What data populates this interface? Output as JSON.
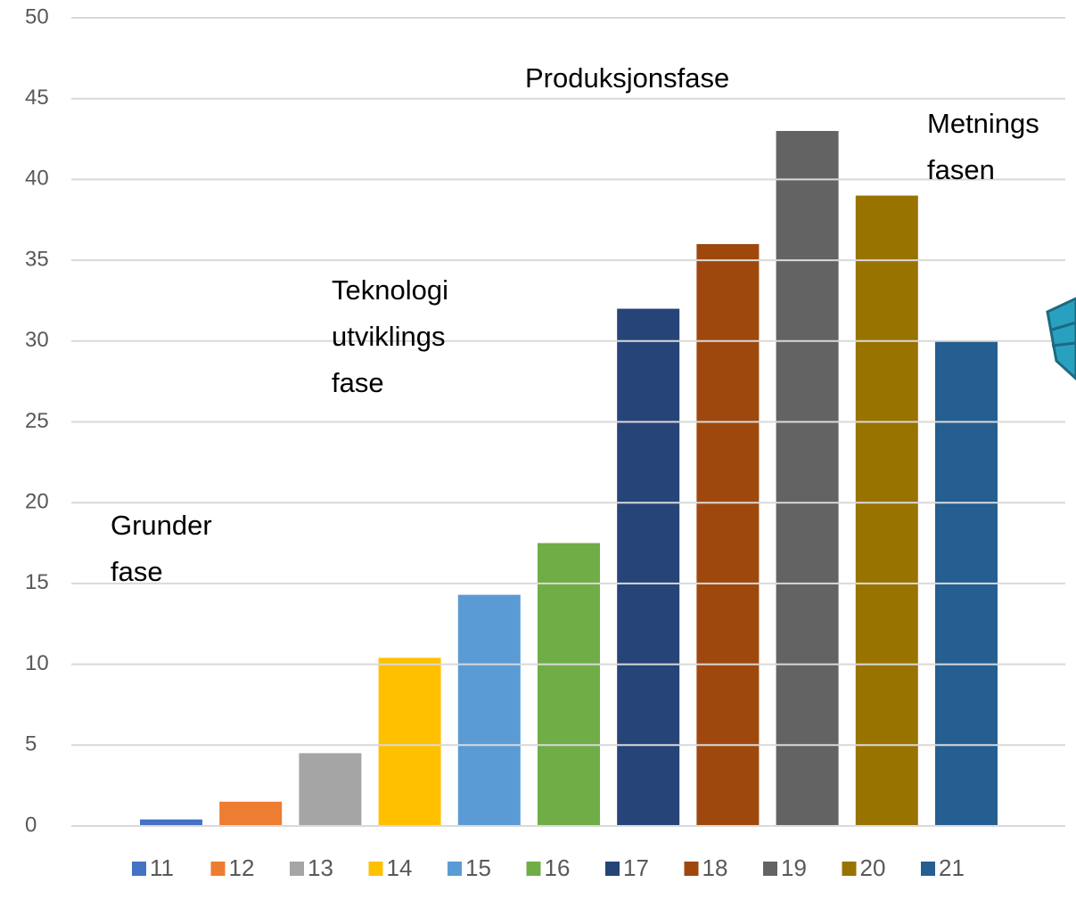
{
  "chart_data": {
    "type": "bar",
    "categories": [
      null
    ],
    "series": [
      {
        "name": "11",
        "color": "#4472c4",
        "values": [
          0.4
        ]
      },
      {
        "name": "12",
        "color": "#ed7d31",
        "values": [
          1.5
        ]
      },
      {
        "name": "13",
        "color": "#a5a5a5",
        "values": [
          4.5
        ]
      },
      {
        "name": "14",
        "color": "#ffc000",
        "values": [
          10.4
        ]
      },
      {
        "name": "15",
        "color": "#5b9bd5",
        "values": [
          14.3
        ]
      },
      {
        "name": "16",
        "color": "#70ad47",
        "values": [
          17.5
        ]
      },
      {
        "name": "17",
        "color": "#264478",
        "values": [
          32
        ]
      },
      {
        "name": "18",
        "color": "#9e480e",
        "values": [
          36
        ]
      },
      {
        "name": "19",
        "color": "#636363",
        "values": [
          43
        ]
      },
      {
        "name": "20",
        "color": "#997300",
        "values": [
          39
        ]
      },
      {
        "name": "21",
        "color": "#255e91",
        "values": [
          30
        ]
      }
    ],
    "ylim": [
      0,
      50
    ],
    "yticks": [
      0,
      5,
      10,
      15,
      20,
      25,
      30,
      35,
      40,
      45,
      50
    ],
    "grid": true,
    "legend": "bottom",
    "annotations": [
      {
        "lines": [
          "Grunder",
          "fase"
        ]
      },
      {
        "lines": [
          "Teknologi",
          "utviklings",
          "fase"
        ]
      },
      {
        "lines": [
          "Produksjonsfase"
        ]
      },
      {
        "lines": [
          "Metnings",
          "fasen"
        ]
      }
    ]
  }
}
